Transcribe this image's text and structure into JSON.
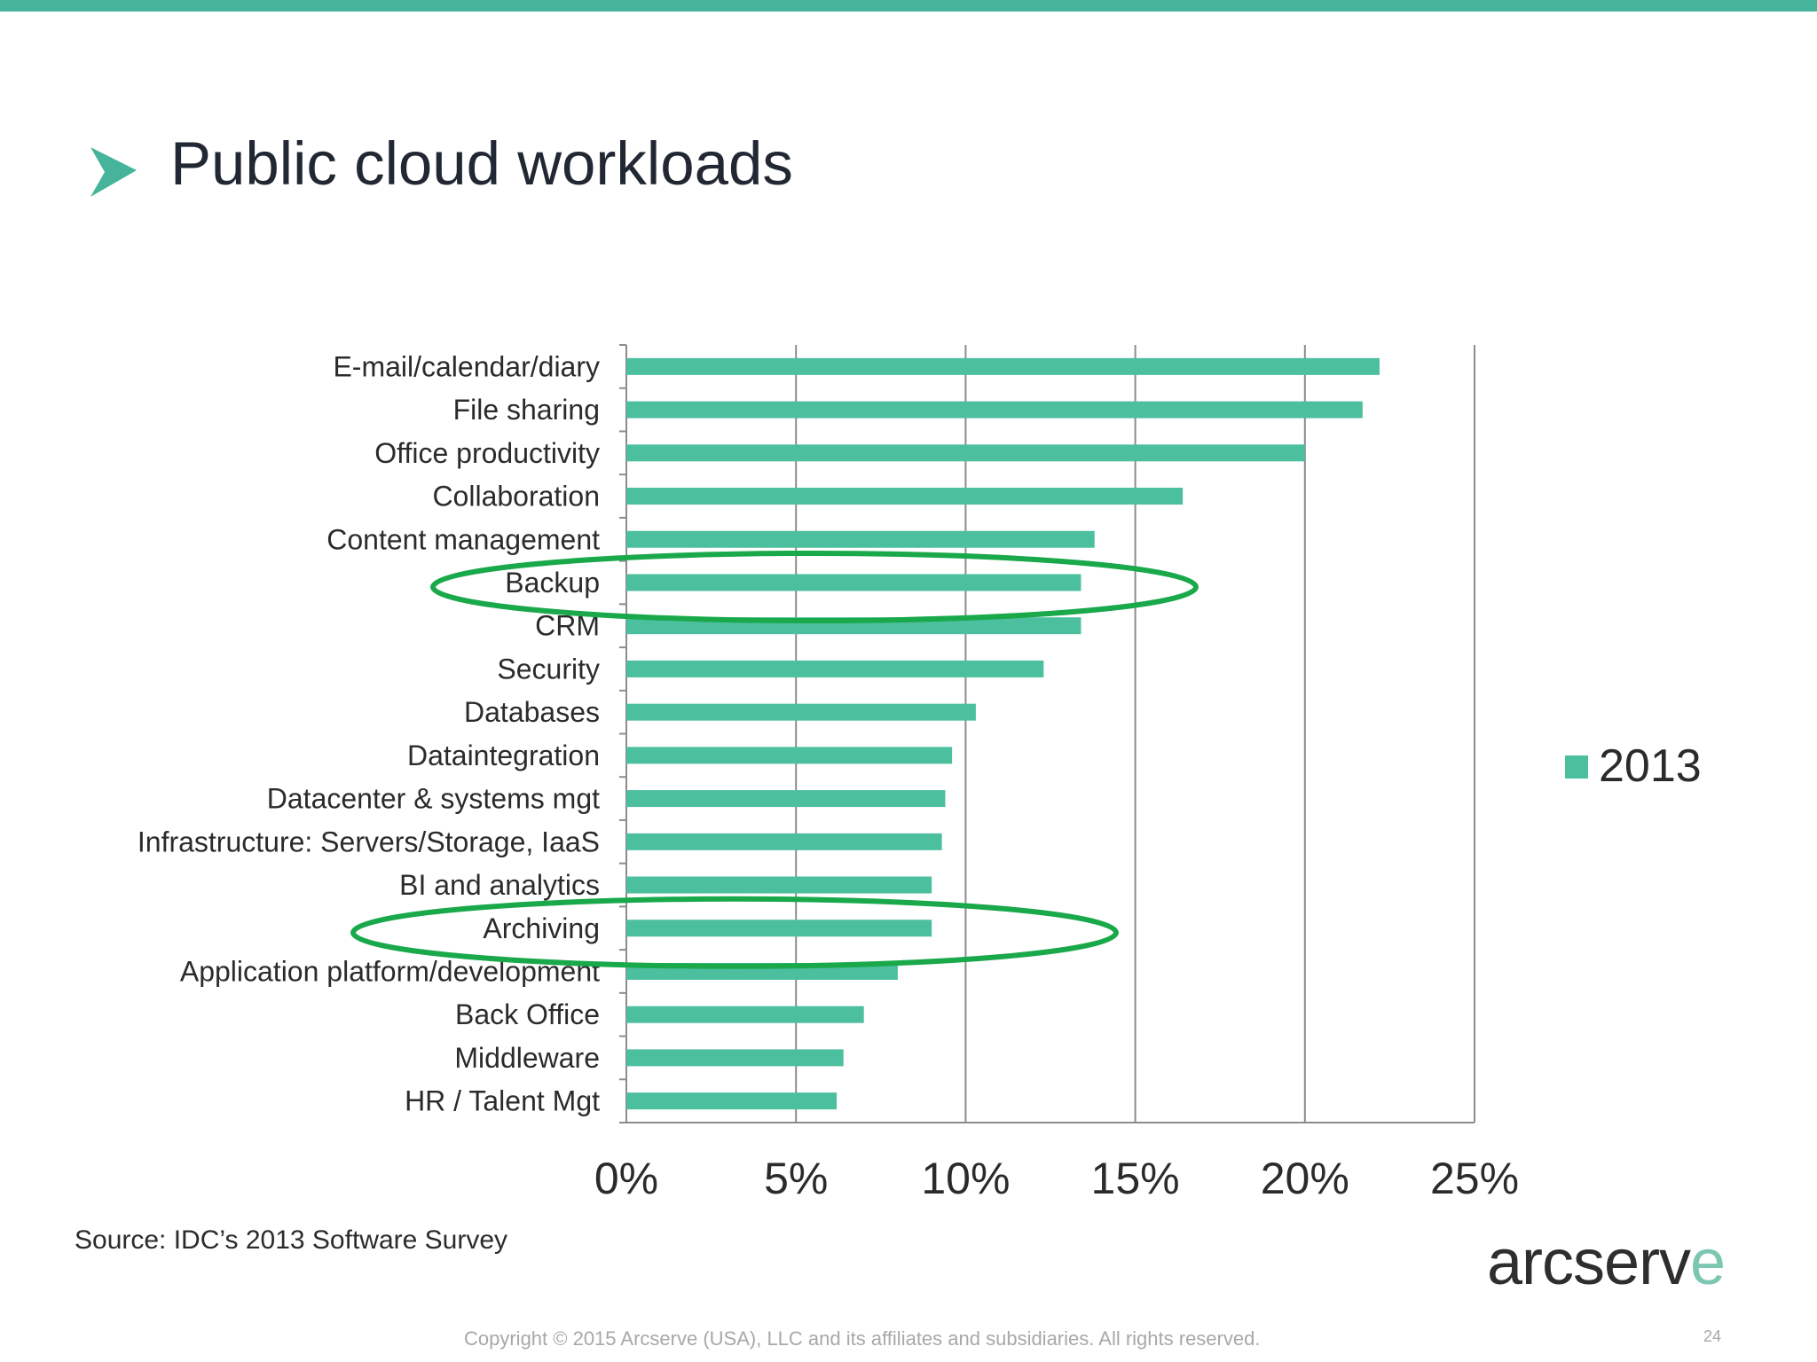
{
  "slide": {
    "title": "Public cloud workloads",
    "source": "Source: IDC’s 2013 Software Survey",
    "brand_main": "arcserv",
    "brand_accent": "e",
    "copyright": "Copyright © 2015 Arcserve (USA), LLC and its affiliates and subsidiaries. All rights reserved.",
    "page_number": "24"
  },
  "colors": {
    "accent": "#45b49b",
    "bar": "#4cbf9f",
    "highlight_ellipse": "#19a84a",
    "gridline": "#8c8c8c",
    "text": "#2b2b2b"
  },
  "icons": [
    "chevron-right-icon"
  ],
  "chart_data": {
    "type": "bar",
    "orientation": "horizontal",
    "title": "",
    "xlabel": "",
    "ylabel": "",
    "categories": [
      "E-mail/calendar/diary",
      "File sharing",
      "Office productivity",
      "Collaboration",
      "Content management",
      "Backup",
      "CRM",
      "Security",
      "Databases",
      "Dataintegration",
      "Datacenter & systems mgt",
      "Infrastructure: Servers/Storage, IaaS",
      "BI and analytics",
      "Archiving",
      "Application platform/development",
      "Back Office",
      "Middleware",
      "HR / Talent Mgt"
    ],
    "series": [
      {
        "name": "2013",
        "values": [
          22.2,
          21.7,
          20.0,
          16.4,
          13.8,
          13.4,
          13.4,
          12.3,
          10.3,
          9.6,
          9.4,
          9.3,
          9.0,
          9.0,
          8.0,
          7.0,
          6.4,
          6.2
        ]
      }
    ],
    "xlim": [
      0,
      25
    ],
    "xticks": [
      "0%",
      "5%",
      "10%",
      "15%",
      "20%",
      "25%"
    ],
    "grid": true,
    "legend_position": "right",
    "highlighted_categories": [
      "Backup",
      "Archiving"
    ]
  }
}
